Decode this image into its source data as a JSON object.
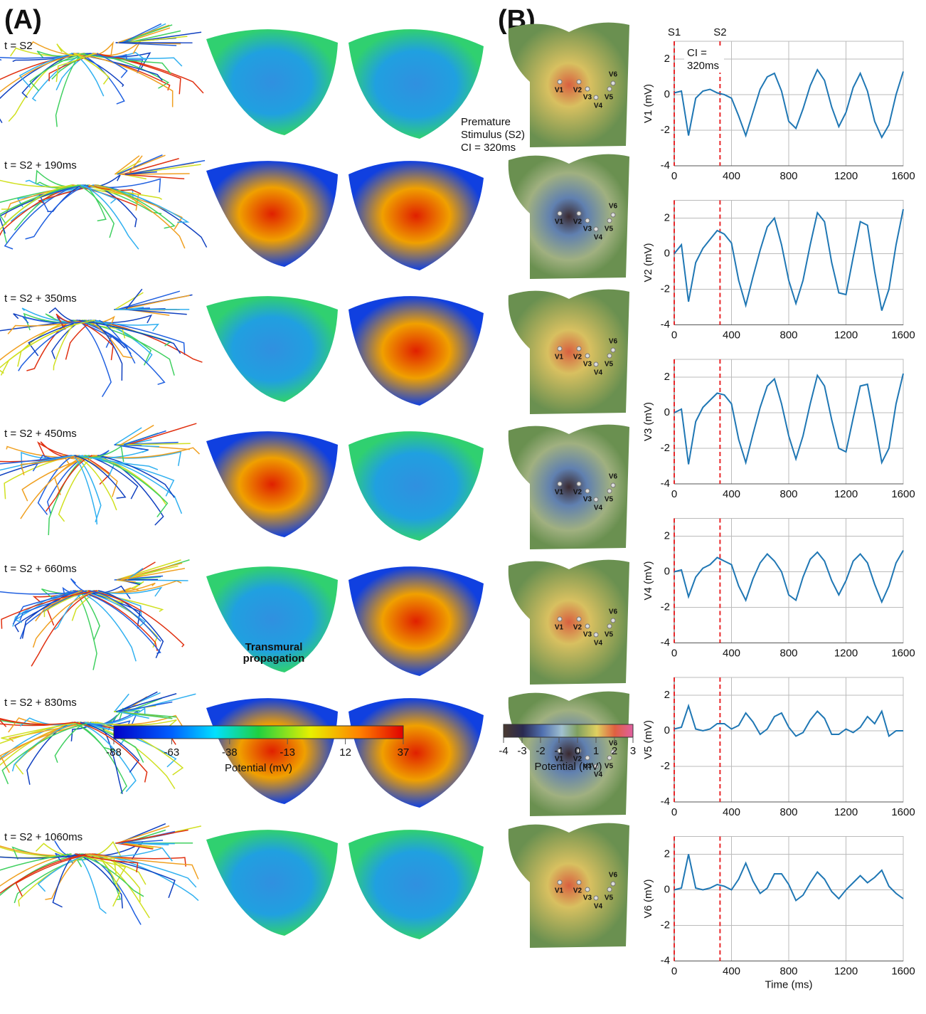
{
  "panel_labels": [
    "(A)",
    "(B)"
  ],
  "panel_a": {
    "time_labels": [
      "t = S2",
      "t = S2 + 190ms",
      "t = S2 + 350ms",
      "t = S2 + 450ms",
      "t = S2 + 660ms",
      "t = S2 + 830ms",
      "t = S2 + 1060ms"
    ],
    "annotations": {
      "premature": [
        "Premature",
        "Stimulus (S2)",
        "CI = 320ms"
      ],
      "transmural": [
        "Transmural",
        "propagation"
      ]
    },
    "colorbar": {
      "range": [
        -88,
        37
      ],
      "ticks": [
        -88,
        -63,
        -38,
        -13,
        12,
        37
      ],
      "label": "Potential (mV)"
    }
  },
  "panel_b": {
    "electrodes": [
      "V1",
      "V2",
      "V3",
      "V4",
      "V5",
      "V6"
    ],
    "colorbar": {
      "range": [
        -4,
        3
      ],
      "ticks": [
        -4,
        -3,
        -2,
        -1,
        0,
        1,
        2,
        3
      ],
      "label": "Potential (mV)"
    }
  },
  "chart_data": [
    {
      "type": "line",
      "ylabel": "V1 (mV)",
      "xlim": [
        0,
        1600
      ],
      "ylim": [
        -4,
        3
      ],
      "xticks": [
        0,
        400,
        800,
        1200,
        1600
      ],
      "yticks": [
        -4,
        -2,
        0,
        2
      ],
      "grid": true,
      "color": "#1f77b4",
      "markers": [
        {
          "x": 0,
          "label": "S1"
        },
        {
          "x": 320,
          "label": "S2"
        }
      ],
      "marker_color": "#e8272a",
      "annotation": [
        "CI =",
        "320ms"
      ],
      "x": [
        0,
        50,
        100,
        150,
        200,
        250,
        300,
        350,
        400,
        450,
        500,
        550,
        600,
        650,
        700,
        750,
        800,
        850,
        900,
        950,
        1000,
        1050,
        1100,
        1150,
        1200,
        1250,
        1300,
        1350,
        1400,
        1450,
        1500,
        1550,
        1600
      ],
      "values": [
        0.1,
        0.2,
        -2.3,
        -0.2,
        0.2,
        0.3,
        0.1,
        0,
        -0.2,
        -1.2,
        -2.3,
        -1.0,
        0.3,
        1.0,
        1.2,
        0.2,
        -1.5,
        -1.9,
        -0.8,
        0.5,
        1.4,
        0.8,
        -0.7,
        -1.8,
        -1.0,
        0.4,
        1.2,
        0.2,
        -1.5,
        -2.4,
        -1.7,
        0,
        1.3
      ]
    },
    {
      "type": "line",
      "ylabel": "V2 (mV)",
      "xlim": [
        0,
        1600
      ],
      "ylim": [
        -4,
        3
      ],
      "xticks": [
        0,
        400,
        800,
        1200,
        1600
      ],
      "yticks": [
        -4,
        -2,
        0,
        2
      ],
      "grid": true,
      "color": "#1f77b4",
      "markers": [
        {
          "x": 0
        },
        {
          "x": 320
        }
      ],
      "marker_color": "#e8272a",
      "x": [
        0,
        50,
        100,
        150,
        200,
        250,
        300,
        350,
        400,
        450,
        500,
        550,
        600,
        650,
        700,
        750,
        800,
        850,
        900,
        950,
        1000,
        1050,
        1100,
        1150,
        1200,
        1250,
        1300,
        1350,
        1400,
        1450,
        1500,
        1550,
        1600
      ],
      "values": [
        0,
        0.5,
        -2.7,
        -0.5,
        0.3,
        0.8,
        1.3,
        1.1,
        0.6,
        -1.5,
        -2.9,
        -1.3,
        0.2,
        1.5,
        2.0,
        0.5,
        -1.5,
        -2.8,
        -1.5,
        0.5,
        2.3,
        1.8,
        -0.5,
        -2.2,
        -2.3,
        -0.2,
        1.8,
        1.6,
        -1.0,
        -3.2,
        -2.0,
        0.5,
        2.5
      ]
    },
    {
      "type": "line",
      "ylabel": "V3 (mV)",
      "xlim": [
        0,
        1600
      ],
      "ylim": [
        -4,
        3
      ],
      "xticks": [
        0,
        400,
        800,
        1200,
        1600
      ],
      "yticks": [
        -4,
        -2,
        0,
        2
      ],
      "grid": true,
      "color": "#1f77b4",
      "markers": [
        {
          "x": 0
        },
        {
          "x": 320
        }
      ],
      "marker_color": "#e8272a",
      "x": [
        0,
        50,
        100,
        150,
        200,
        250,
        300,
        350,
        400,
        450,
        500,
        550,
        600,
        650,
        700,
        750,
        800,
        850,
        900,
        950,
        1000,
        1050,
        1100,
        1150,
        1200,
        1250,
        1300,
        1350,
        1400,
        1450,
        1500,
        1550,
        1600
      ],
      "values": [
        0,
        0.2,
        -2.9,
        -0.5,
        0.3,
        0.7,
        1.1,
        1.0,
        0.5,
        -1.5,
        -2.8,
        -1.2,
        0.3,
        1.5,
        1.9,
        0.5,
        -1.3,
        -2.6,
        -1.3,
        0.5,
        2.1,
        1.5,
        -0.4,
        -2.0,
        -2.2,
        -0.3,
        1.5,
        1.6,
        -0.5,
        -2.8,
        -2.0,
        0.5,
        2.2
      ]
    },
    {
      "type": "line",
      "ylabel": "V4 (mV)",
      "xlim": [
        0,
        1600
      ],
      "ylim": [
        -4,
        3
      ],
      "xticks": [
        0,
        400,
        800,
        1200,
        1600
      ],
      "yticks": [
        -4,
        -2,
        0,
        2
      ],
      "grid": true,
      "color": "#1f77b4",
      "markers": [
        {
          "x": 0
        },
        {
          "x": 320
        }
      ],
      "marker_color": "#e8272a",
      "x": [
        0,
        50,
        100,
        150,
        200,
        250,
        300,
        350,
        400,
        450,
        500,
        550,
        600,
        650,
        700,
        750,
        800,
        850,
        900,
        950,
        1000,
        1050,
        1100,
        1150,
        1200,
        1250,
        1300,
        1350,
        1400,
        1450,
        1500,
        1550,
        1600
      ],
      "values": [
        0,
        0.1,
        -1.4,
        -0.3,
        0.2,
        0.4,
        0.8,
        0.6,
        0.4,
        -0.8,
        -1.6,
        -0.4,
        0.5,
        1.0,
        0.6,
        0,
        -1.3,
        -1.6,
        -0.3,
        0.7,
        1.1,
        0.6,
        -0.5,
        -1.3,
        -0.5,
        0.6,
        1.0,
        0.5,
        -0.7,
        -1.7,
        -0.8,
        0.5,
        1.2
      ]
    },
    {
      "type": "line",
      "ylabel": "V5 (mV)",
      "xlim": [
        0,
        1600
      ],
      "ylim": [
        -4,
        3
      ],
      "xticks": [
        0,
        400,
        800,
        1200,
        1600
      ],
      "yticks": [
        -4,
        -2,
        0,
        2
      ],
      "grid": true,
      "color": "#1f77b4",
      "markers": [
        {
          "x": 0
        },
        {
          "x": 320
        }
      ],
      "marker_color": "#e8272a",
      "x": [
        0,
        50,
        100,
        150,
        200,
        250,
        300,
        350,
        400,
        450,
        500,
        550,
        600,
        650,
        700,
        750,
        800,
        850,
        900,
        950,
        1000,
        1050,
        1100,
        1150,
        1200,
        1250,
        1300,
        1350,
        1400,
        1450,
        1500,
        1550,
        1600
      ],
      "values": [
        0.1,
        0.2,
        1.4,
        0.1,
        0,
        0.1,
        0.4,
        0.4,
        0.1,
        0.3,
        1.0,
        0.5,
        -0.2,
        0.1,
        0.8,
        1.0,
        0.2,
        -0.3,
        -0.1,
        0.6,
        1.1,
        0.7,
        -0.2,
        -0.2,
        0.1,
        -0.1,
        0.2,
        0.8,
        0.4,
        1.1,
        -0.3,
        0,
        0
      ]
    },
    {
      "type": "line",
      "ylabel": "V6 (mV)",
      "xlabel": "Time (ms)",
      "xlim": [
        0,
        1600
      ],
      "ylim": [
        -4,
        3
      ],
      "xticks": [
        0,
        400,
        800,
        1200,
        1600
      ],
      "yticks": [
        -4,
        -2,
        0,
        2
      ],
      "grid": true,
      "color": "#1f77b4",
      "markers": [
        {
          "x": 0
        },
        {
          "x": 320
        }
      ],
      "marker_color": "#e8272a",
      "x": [
        0,
        50,
        100,
        150,
        200,
        250,
        300,
        350,
        400,
        450,
        500,
        550,
        600,
        650,
        700,
        750,
        800,
        850,
        900,
        950,
        1000,
        1050,
        1100,
        1150,
        1200,
        1250,
        1300,
        1350,
        1400,
        1450,
        1500,
        1550,
        1600
      ],
      "values": [
        0,
        0.1,
        2.0,
        0.1,
        0,
        0.1,
        0.3,
        0.2,
        0,
        0.6,
        1.5,
        0.5,
        -0.2,
        0.1,
        0.9,
        0.9,
        0.3,
        -0.6,
        -0.3,
        0.4,
        1.0,
        0.6,
        -0.1,
        -0.5,
        0,
        0.4,
        0.8,
        0.4,
        0.7,
        1.1,
        0.2,
        -0.2,
        -0.5
      ]
    }
  ]
}
